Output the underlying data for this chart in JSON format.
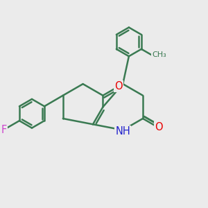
{
  "background_color": "#ebebeb",
  "bond_color": "#3a7a52",
  "bond_width": 1.8,
  "dbo": 0.12,
  "atom_colors": {
    "O": "#e80000",
    "N": "#2222cc",
    "F": "#cc44cc",
    "C": "#3a7a52"
  },
  "font_size": 10.5,
  "figsize": [
    3.0,
    3.0
  ],
  "dpi": 100
}
